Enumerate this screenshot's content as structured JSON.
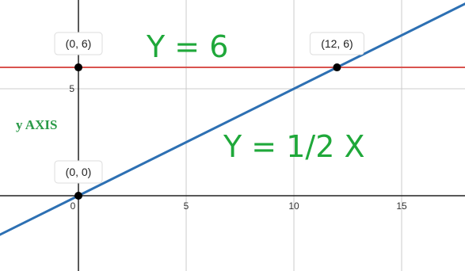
{
  "chart_data": {
    "type": "line",
    "xlim": [
      -3.64,
      17.94
    ],
    "ylim": [
      -3.52,
      9.15
    ],
    "xticks": [
      0,
      5,
      10,
      15
    ],
    "yticks": [
      5
    ],
    "grid": true,
    "series": [
      {
        "name": "Y = 6",
        "color": "#d9534f",
        "x": [
          -4,
          18
        ],
        "values": [
          6,
          6
        ]
      },
      {
        "name": "Y = 1/2 X",
        "color": "#2d70b3",
        "x": [
          -4,
          18
        ],
        "values": [
          -2,
          9
        ]
      }
    ],
    "points": [
      {
        "x": 0,
        "y": 6,
        "label": "(0, 6)"
      },
      {
        "x": 12,
        "y": 6,
        "label": "(12, 6)"
      },
      {
        "x": 0,
        "y": 0,
        "label": "(0, 0)"
      }
    ],
    "y_axis_note": "y AXIS"
  }
}
